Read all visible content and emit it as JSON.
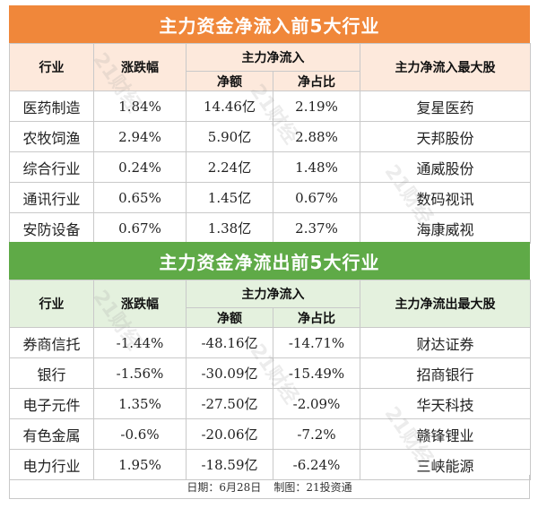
{
  "inflow": {
    "title": "主力资金净流入前5大行业",
    "headers": {
      "industry": "行业",
      "change": "涨跌幅",
      "main_flow": "主力净流入",
      "net_amount": "净额",
      "net_ratio": "净占比",
      "top_stock": "主力净流入最大股"
    },
    "rows": [
      {
        "industry": "医药制造",
        "change": "1.84%",
        "net_amount": "14.46亿",
        "net_ratio": "2.19%",
        "top_stock": "复星医药"
      },
      {
        "industry": "农牧饲渔",
        "change": "2.94%",
        "net_amount": "5.90亿",
        "net_ratio": "2.88%",
        "top_stock": "天邦股份"
      },
      {
        "industry": "综合行业",
        "change": "0.24%",
        "net_amount": "2.24亿",
        "net_ratio": "1.48%",
        "top_stock": "通威股份"
      },
      {
        "industry": "通讯行业",
        "change": "0.65%",
        "net_amount": "1.45亿",
        "net_ratio": "0.67%",
        "top_stock": "数码视讯"
      },
      {
        "industry": "安防设备",
        "change": "0.67%",
        "net_amount": "1.38亿",
        "net_ratio": "2.37%",
        "top_stock": "海康威视"
      }
    ]
  },
  "outflow": {
    "title": "主力资金净流出前5大行业",
    "headers": {
      "industry": "行业",
      "change": "涨跌幅",
      "main_flow": "主力净流入",
      "net_amount": "净额",
      "net_ratio": "净占比",
      "top_stock": "主力净流出最大股"
    },
    "rows": [
      {
        "industry": "券商信托",
        "change": "-1.44%",
        "net_amount": "-48.16亿",
        "net_ratio": "-14.71%",
        "top_stock": "财达证券"
      },
      {
        "industry": "银行",
        "change": "-1.56%",
        "net_amount": "-30.09亿",
        "net_ratio": "-15.49%",
        "top_stock": "招商银行"
      },
      {
        "industry": "电子元件",
        "change": "1.35%",
        "net_amount": "-27.50亿",
        "net_ratio": "-2.09%",
        "top_stock": "华天科技"
      },
      {
        "industry": "有色金属",
        "change": "-0.6%",
        "net_amount": "-20.06亿",
        "net_ratio": "-7.2%",
        "top_stock": "赣锋锂业"
      },
      {
        "industry": "电力行业",
        "change": "1.95%",
        "net_amount": "-18.59亿",
        "net_ratio": "-6.24%",
        "top_stock": "三峡能源"
      }
    ]
  },
  "footer": {
    "date": "日期：6月28日",
    "credit": "制图：21投资通"
  },
  "watermark": "21财经",
  "colors": {
    "inflow_banner": "#f0873a",
    "inflow_header": "#fde9dc",
    "outflow_banner": "#5faa47",
    "outflow_header": "#e4f1de"
  }
}
